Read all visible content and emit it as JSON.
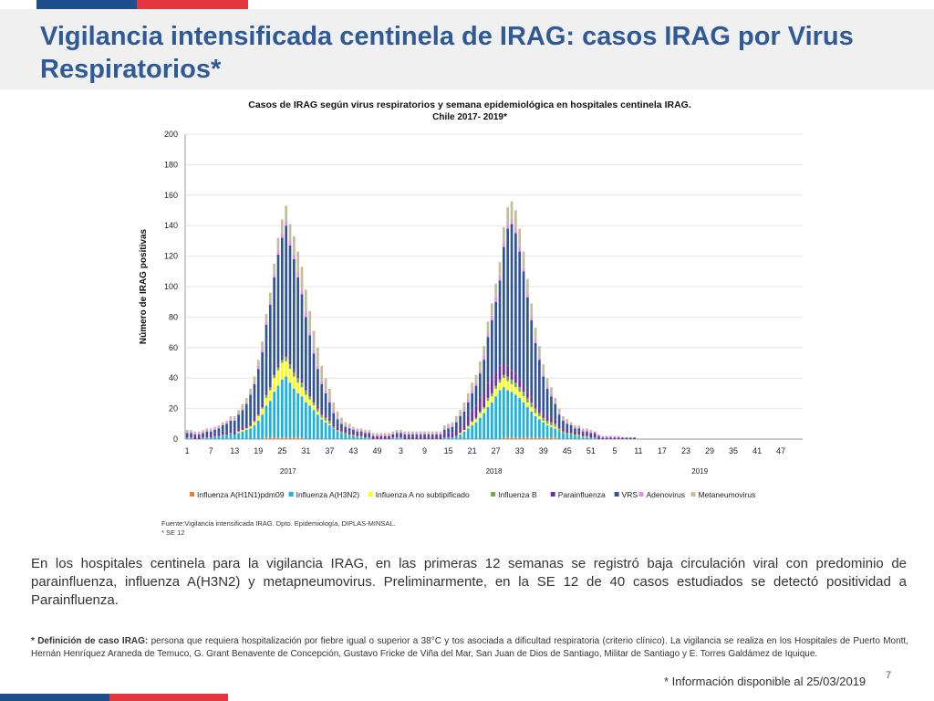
{
  "slide": {
    "title": "Vigilancia intensificada centinela de IRAG: casos IRAG por  Virus Respiratorios*",
    "body_text": "En los hospitales centinela para la vigilancia IRAG, en las primeras 12 semanas se registró baja circulación viral con predominio de parainfluenza, influenza A(H3N2) y metapneumovirus. Preliminarmente, en la SE 12 de  40 casos estudiados se detectó positividad a Parainfluenza.",
    "definition_label": "* Definición de caso IRAG:",
    "definition_text": " persona que requiera hospitalización por fiebre igual o superior a 38°C y tos asociada a dificultad respiratoria (criterio clínico). La vigilancia se realiza en los Hospitales de Puerto Montt, Hernán Henríquez Araneda de  Temuco, G. Grant Benavente de Concepción, Gustavo Fricke de Viña del Mar, San Juan de Dios de Santiago, Militar de Santiago y E. Torres Galdámez de Iquique.",
    "info_note": "* Información disponible al 25/03/2019",
    "page_number": "7"
  },
  "colors": {
    "title": "#2e5b97",
    "flag_blue": "#1f4e8c",
    "flag_red": "#e4363f",
    "title_band": "#f0f0f0"
  },
  "chart_data": {
    "type": "bar",
    "stacked": true,
    "title": "Casos de IRAG según virus respiratorios y semana epidemiológica en hospitales centinela IRAG.",
    "subtitle": "Chile 2017- 2019*",
    "ylabel": "Número de IRAG positivas",
    "ylim": [
      0,
      200
    ],
    "yticks": [
      0,
      20,
      40,
      60,
      80,
      100,
      120,
      140,
      160,
      180,
      200
    ],
    "x_tick_labels": [
      "1",
      "7",
      "13",
      "19",
      "25",
      "31",
      "37",
      "43",
      "49",
      "3",
      "9",
      "15",
      "21",
      "27",
      "33",
      "39",
      "45",
      "51",
      "5",
      "11",
      "17",
      "23",
      "29",
      "35",
      "41",
      "47"
    ],
    "years": [
      "2017",
      "2018",
      "2019"
    ],
    "week_groups": [
      {
        "year": "2017",
        "start_week": 1,
        "weeks": 52
      },
      {
        "year": "2018",
        "start_week": 1,
        "weeks": 52
      },
      {
        "year": "2019",
        "start_week": 1,
        "weeks": 52
      }
    ],
    "source": "Fuente:Vigilancia intensificada IRAG. Dpto. Epidemiología, DIPLAS-MINSAL.",
    "source_note": "* SE 12",
    "legend_position": "bottom",
    "series": [
      {
        "name": "Influenza A(H1N1)pdm09",
        "color": "#ed7d31",
        "values": [
          0,
          0,
          0,
          0,
          0,
          0,
          0,
          0,
          0,
          0,
          0,
          0,
          0,
          0,
          0,
          0,
          0,
          0,
          0,
          0,
          1,
          1,
          1,
          1,
          1,
          1,
          1,
          1,
          1,
          1,
          0,
          0,
          0,
          0,
          0,
          0,
          0,
          0,
          0,
          0,
          0,
          0,
          0,
          0,
          0,
          0,
          0,
          0,
          0,
          0,
          0,
          0,
          0,
          0,
          0,
          0,
          0,
          0,
          0,
          0,
          0,
          0,
          0,
          0,
          0,
          0,
          0,
          0,
          0,
          0,
          0,
          0,
          0,
          0,
          0,
          0,
          0,
          0,
          0,
          0,
          1,
          1,
          1,
          1,
          1,
          1,
          1,
          1,
          1,
          1,
          1,
          1,
          1,
          1,
          0,
          0,
          0,
          0,
          0,
          0,
          0,
          0,
          0,
          0,
          0,
          0,
          0,
          0,
          0,
          0,
          0,
          0,
          0,
          0,
          0,
          0,
          0,
          0,
          0,
          0,
          0,
          0,
          0,
          0,
          0,
          0,
          0,
          0,
          0,
          0,
          0,
          0,
          0,
          0,
          0,
          0,
          0,
          0,
          0,
          0,
          0,
          0,
          0,
          0,
          0,
          0,
          0,
          0,
          0,
          0,
          0,
          0,
          0,
          0,
          0,
          0
        ]
      },
      {
        "name": "Influenza A(H3N2)",
        "color": "#1ab3e0",
        "values": [
          1,
          1,
          0,
          0,
          1,
          1,
          1,
          2,
          2,
          3,
          3,
          4,
          3,
          4,
          5,
          6,
          7,
          9,
          12,
          16,
          21,
          24,
          30,
          34,
          38,
          40,
          36,
          32,
          29,
          27,
          24,
          22,
          19,
          16,
          13,
          11,
          9,
          7,
          5,
          4,
          3,
          2,
          2,
          1,
          1,
          1,
          1,
          0,
          0,
          0,
          0,
          0,
          1,
          1,
          1,
          0,
          0,
          0,
          0,
          0,
          0,
          0,
          0,
          0,
          0,
          1,
          1,
          1,
          2,
          3,
          5,
          7,
          9,
          11,
          14,
          17,
          21,
          24,
          28,
          32,
          33,
          31,
          30,
          28,
          26,
          23,
          20,
          17,
          14,
          12,
          10,
          8,
          7,
          6,
          5,
          4,
          3,
          3,
          2,
          2,
          1,
          1,
          1,
          1,
          0,
          0,
          0,
          0,
          0,
          0,
          0,
          0,
          0,
          0,
          0,
          0,
          0,
          0,
          0,
          0,
          0,
          0,
          0,
          0,
          0,
          0,
          0,
          0,
          0,
          0,
          0,
          0,
          0,
          0,
          0,
          0,
          0,
          0,
          0,
          0,
          0,
          0,
          0,
          0,
          0,
          0,
          0,
          0,
          0,
          0,
          0,
          0,
          0,
          0,
          0,
          0
        ]
      },
      {
        "name": "Influenza A no subtipificado",
        "color": "#ffff00",
        "values": [
          0,
          0,
          0,
          0,
          0,
          0,
          0,
          0,
          0,
          0,
          0,
          0,
          0,
          1,
          1,
          1,
          1,
          2,
          3,
          4,
          5,
          7,
          9,
          10,
          11,
          10,
          9,
          8,
          7,
          6,
          5,
          4,
          3,
          2,
          1,
          1,
          1,
          0,
          0,
          0,
          0,
          0,
          0,
          0,
          0,
          0,
          0,
          0,
          0,
          0,
          0,
          0,
          0,
          0,
          0,
          0,
          0,
          0,
          0,
          0,
          0,
          0,
          0,
          0,
          0,
          0,
          0,
          0,
          0,
          1,
          1,
          1,
          2,
          2,
          3,
          3,
          4,
          4,
          5,
          5,
          6,
          6,
          5,
          5,
          4,
          4,
          3,
          3,
          2,
          2,
          1,
          1,
          1,
          1,
          0,
          0,
          0,
          0,
          0,
          0,
          0,
          0,
          0,
          0,
          0,
          0,
          0,
          0,
          0,
          0,
          0,
          0,
          0,
          0,
          0,
          0,
          0,
          0,
          0,
          0,
          0,
          0,
          0,
          0,
          0,
          0,
          0,
          0,
          0,
          0,
          0,
          0,
          0,
          0,
          0,
          0,
          0,
          0,
          0,
          0,
          0,
          0,
          0,
          0,
          0,
          0,
          0,
          0,
          0,
          0,
          0,
          0,
          0,
          0,
          0,
          0
        ]
      },
      {
        "name": "Influenza  B",
        "color": "#70ad47",
        "values": [
          0,
          0,
          0,
          0,
          0,
          0,
          0,
          0,
          0,
          0,
          0,
          0,
          0,
          0,
          0,
          0,
          1,
          1,
          1,
          1,
          2,
          2,
          2,
          2,
          2,
          3,
          3,
          3,
          3,
          3,
          3,
          2,
          2,
          2,
          2,
          2,
          2,
          1,
          1,
          1,
          1,
          1,
          1,
          1,
          1,
          0,
          0,
          0,
          0,
          0,
          0,
          0,
          0,
          0,
          0,
          0,
          0,
          0,
          0,
          0,
          0,
          0,
          0,
          0,
          0,
          0,
          0,
          0,
          0,
          0,
          0,
          1,
          1,
          1,
          1,
          1,
          2,
          2,
          2,
          2,
          2,
          3,
          3,
          3,
          3,
          3,
          3,
          3,
          3,
          2,
          2,
          2,
          2,
          2,
          2,
          1,
          1,
          1,
          1,
          1,
          1,
          1,
          0,
          0,
          0,
          0,
          0,
          0,
          0,
          0,
          0,
          0,
          0,
          0,
          0,
          0,
          0,
          0,
          0,
          0,
          0,
          0,
          0,
          0,
          0,
          0,
          0,
          0,
          0,
          0,
          0,
          0,
          0,
          0,
          0,
          0,
          0,
          0,
          0,
          0,
          0,
          0,
          0,
          0,
          0,
          0,
          0,
          0,
          0,
          0,
          0,
          0,
          0,
          0,
          0,
          0
        ]
      },
      {
        "name": "Parainfluenza",
        "color": "#7030a0",
        "values": [
          2,
          2,
          2,
          2,
          2,
          2,
          2,
          2,
          2,
          2,
          2,
          2,
          2,
          2,
          2,
          2,
          2,
          2,
          2,
          2,
          2,
          2,
          2,
          2,
          2,
          2,
          2,
          2,
          2,
          2,
          2,
          2,
          2,
          2,
          2,
          2,
          2,
          2,
          2,
          2,
          2,
          2,
          2,
          2,
          2,
          2,
          2,
          2,
          2,
          2,
          2,
          2,
          2,
          2,
          2,
          2,
          2,
          2,
          2,
          2,
          2,
          2,
          2,
          2,
          2,
          3,
          3,
          3,
          4,
          5,
          5,
          6,
          7,
          8,
          9,
          9,
          10,
          10,
          9,
          9,
          8,
          7,
          6,
          6,
          5,
          5,
          4,
          4,
          3,
          3,
          3,
          3,
          3,
          3,
          2,
          2,
          2,
          2,
          2,
          2,
          2,
          2,
          2,
          2,
          1,
          1,
          1,
          1,
          1,
          1,
          1,
          1,
          1,
          1,
          0,
          0,
          0,
          0,
          0,
          0,
          0,
          0,
          0,
          0,
          0,
          0,
          0,
          0,
          0,
          0,
          0,
          0,
          0,
          0,
          0,
          0,
          0,
          0,
          0,
          0,
          0,
          0,
          0,
          0,
          0,
          0,
          0,
          0,
          0,
          0,
          0,
          0,
          0,
          0,
          0,
          0
        ]
      },
      {
        "name": "VRS",
        "color": "#2f5597",
        "values": [
          1,
          1,
          1,
          1,
          1,
          2,
          2,
          2,
          3,
          4,
          5,
          6,
          7,
          9,
          11,
          14,
          18,
          22,
          28,
          34,
          44,
          52,
          62,
          72,
          78,
          84,
          76,
          72,
          64,
          56,
          46,
          38,
          30,
          24,
          18,
          14,
          10,
          7,
          5,
          3,
          2,
          2,
          1,
          1,
          1,
          1,
          1,
          0,
          0,
          0,
          0,
          0,
          0,
          1,
          1,
          1,
          1,
          1,
          1,
          1,
          1,
          1,
          1,
          1,
          1,
          2,
          3,
          4,
          5,
          6,
          7,
          9,
          11,
          13,
          16,
          22,
          30,
          38,
          46,
          56,
          76,
          90,
          96,
          92,
          84,
          74,
          62,
          50,
          40,
          32,
          24,
          18,
          14,
          10,
          7,
          5,
          4,
          3,
          2,
          2,
          1,
          1,
          1,
          1,
          1,
          0,
          0,
          0,
          0,
          0,
          0,
          0,
          0,
          0,
          0,
          0,
          0,
          0,
          0,
          0,
          0,
          0,
          0,
          0,
          0,
          0,
          0,
          0,
          0,
          0,
          0,
          0,
          0,
          0,
          0,
          0,
          0,
          0,
          0,
          0,
          0,
          0,
          0,
          0,
          0,
          0,
          0,
          0,
          0,
          0,
          0,
          0,
          0,
          0,
          0,
          0
        ]
      },
      {
        "name": "Adenovirus",
        "color": "#e58be8",
        "values": [
          1,
          1,
          1,
          1,
          1,
          1,
          1,
          1,
          1,
          1,
          1,
          1,
          1,
          1,
          1,
          1,
          1,
          1,
          2,
          2,
          2,
          2,
          2,
          3,
          3,
          3,
          3,
          3,
          3,
          3,
          3,
          2,
          2,
          2,
          2,
          2,
          2,
          2,
          1,
          1,
          1,
          1,
          1,
          1,
          1,
          1,
          1,
          1,
          1,
          1,
          1,
          1,
          1,
          1,
          1,
          1,
          1,
          1,
          1,
          1,
          1,
          1,
          1,
          1,
          1,
          1,
          1,
          1,
          1,
          1,
          2,
          2,
          2,
          2,
          2,
          3,
          3,
          3,
          3,
          3,
          3,
          3,
          3,
          3,
          3,
          2,
          2,
          2,
          2,
          2,
          2,
          2,
          2,
          1,
          1,
          1,
          1,
          1,
          1,
          1,
          1,
          1,
          1,
          1,
          1,
          1,
          1,
          1,
          1,
          1,
          0,
          0,
          0,
          0,
          0,
          0,
          0,
          0,
          0,
          0,
          0,
          0,
          0,
          0,
          0,
          0,
          0,
          0,
          0,
          0,
          0,
          0,
          0,
          0,
          0,
          0,
          0,
          0,
          0,
          0,
          0,
          0,
          0,
          0,
          0,
          0,
          0,
          0,
          0,
          0,
          0,
          0,
          0,
          0,
          0,
          0
        ]
      },
      {
        "name": "Metaneumovirus",
        "color": "#c4bd97",
        "values": [
          1,
          1,
          1,
          1,
          1,
          1,
          1,
          1,
          1,
          1,
          1,
          2,
          2,
          2,
          3,
          3,
          3,
          4,
          4,
          5,
          5,
          6,
          7,
          8,
          9,
          10,
          11,
          12,
          14,
          15,
          15,
          14,
          13,
          12,
          10,
          8,
          7,
          5,
          4,
          3,
          2,
          2,
          1,
          1,
          1,
          1,
          1,
          1,
          1,
          1,
          1,
          1,
          1,
          1,
          1,
          1,
          1,
          1,
          1,
          1,
          1,
          1,
          1,
          1,
          1,
          2,
          2,
          2,
          3,
          3,
          4,
          4,
          5,
          5,
          6,
          6,
          7,
          8,
          9,
          9,
          10,
          11,
          12,
          12,
          12,
          11,
          10,
          9,
          8,
          7,
          6,
          5,
          4,
          3,
          3,
          2,
          2,
          1,
          1,
          1,
          1,
          1,
          1,
          0,
          0,
          0,
          0,
          0,
          0,
          0,
          0,
          0,
          0,
          0,
          0,
          0,
          0,
          0,
          0,
          0,
          0,
          0,
          0,
          0,
          0,
          0,
          0,
          0,
          0,
          0,
          0,
          0,
          0,
          0,
          0,
          0,
          0,
          0,
          0,
          0,
          0,
          0,
          0,
          0,
          0,
          0,
          0,
          0,
          0,
          0,
          0,
          0,
          0,
          0,
          0,
          0
        ]
      }
    ]
  }
}
